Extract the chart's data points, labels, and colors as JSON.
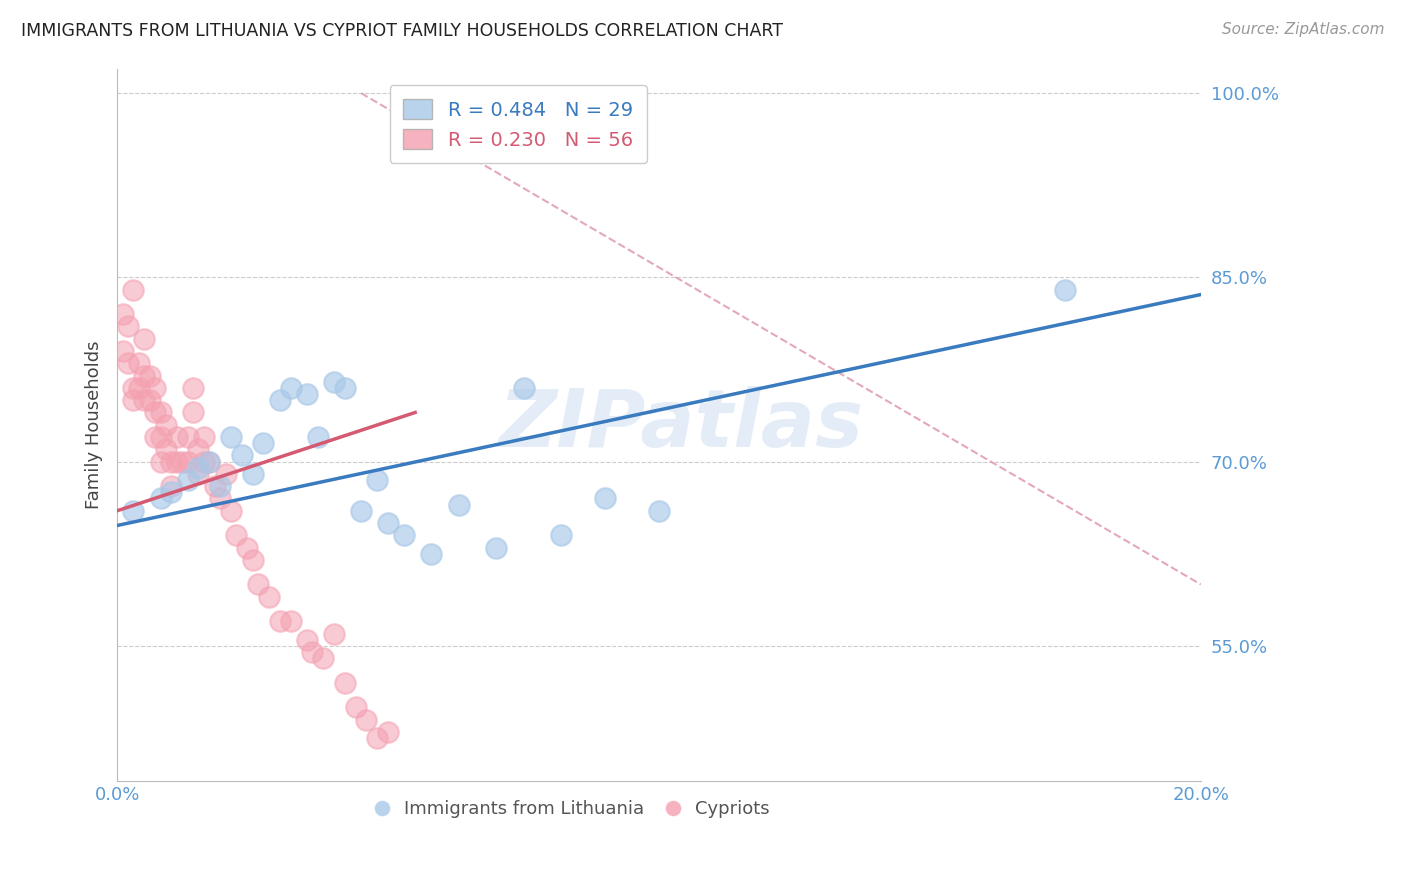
{
  "title": "IMMIGRANTS FROM LITHUANIA VS CYPRIOT FAMILY HOUSEHOLDS CORRELATION CHART",
  "source": "Source: ZipAtlas.com",
  "ylabel": "Family Households",
  "xlim": [
    0.0,
    0.2
  ],
  "ylim": [
    0.44,
    1.02
  ],
  "yticks": [
    0.55,
    0.7,
    0.85,
    1.0
  ],
  "ytick_labels": [
    "55.0%",
    "70.0%",
    "85.0%",
    "100.0%"
  ],
  "xticks": [
    0.0,
    0.04,
    0.08,
    0.12,
    0.16,
    0.2
  ],
  "xtick_labels": [
    "0.0%",
    "",
    "",
    "",
    "",
    "20.0%"
  ],
  "blue_color": "#a8c8e8",
  "pink_color": "#f4a0b0",
  "blue_line_color": "#3a7abf",
  "pink_line_color": "#d45a72",
  "dash_line_color": "#e0a0b0",
  "axis_color": "#5b9bd5",
  "blue_scatter_x": [
    0.003,
    0.008,
    0.01,
    0.013,
    0.015,
    0.017,
    0.019,
    0.021,
    0.023,
    0.025,
    0.027,
    0.03,
    0.032,
    0.035,
    0.037,
    0.04,
    0.042,
    0.045,
    0.048,
    0.05,
    0.053,
    0.058,
    0.063,
    0.07,
    0.075,
    0.082,
    0.09,
    0.1,
    0.175
  ],
  "blue_scatter_y": [
    0.66,
    0.67,
    0.675,
    0.685,
    0.695,
    0.7,
    0.68,
    0.72,
    0.705,
    0.69,
    0.715,
    0.75,
    0.76,
    0.755,
    0.72,
    0.765,
    0.76,
    0.66,
    0.685,
    0.65,
    0.64,
    0.625,
    0.665,
    0.63,
    0.76,
    0.64,
    0.67,
    0.66,
    0.84
  ],
  "pink_scatter_x": [
    0.001,
    0.001,
    0.002,
    0.002,
    0.003,
    0.003,
    0.003,
    0.004,
    0.004,
    0.005,
    0.005,
    0.005,
    0.006,
    0.006,
    0.007,
    0.007,
    0.007,
    0.008,
    0.008,
    0.008,
    0.009,
    0.009,
    0.01,
    0.01,
    0.011,
    0.011,
    0.012,
    0.013,
    0.013,
    0.014,
    0.014,
    0.015,
    0.015,
    0.016,
    0.016,
    0.017,
    0.018,
    0.019,
    0.02,
    0.021,
    0.022,
    0.024,
    0.025,
    0.026,
    0.028,
    0.03,
    0.032,
    0.035,
    0.036,
    0.038,
    0.04,
    0.042,
    0.044,
    0.046,
    0.048,
    0.05
  ],
  "pink_scatter_y": [
    0.82,
    0.79,
    0.81,
    0.78,
    0.84,
    0.76,
    0.75,
    0.78,
    0.76,
    0.8,
    0.77,
    0.75,
    0.77,
    0.75,
    0.76,
    0.74,
    0.72,
    0.74,
    0.72,
    0.7,
    0.73,
    0.71,
    0.7,
    0.68,
    0.72,
    0.7,
    0.7,
    0.72,
    0.7,
    0.76,
    0.74,
    0.71,
    0.69,
    0.72,
    0.7,
    0.7,
    0.68,
    0.67,
    0.69,
    0.66,
    0.64,
    0.63,
    0.62,
    0.6,
    0.59,
    0.57,
    0.57,
    0.555,
    0.545,
    0.54,
    0.56,
    0.52,
    0.5,
    0.49,
    0.475,
    0.48
  ],
  "blue_line_x0": 0.0,
  "blue_line_y0": 0.648,
  "blue_line_x1": 0.2,
  "blue_line_y1": 0.836,
  "pink_line_x0": 0.0,
  "pink_line_y0": 0.66,
  "pink_line_x1": 0.055,
  "pink_line_y1": 0.74,
  "dash_line_x0": 0.045,
  "dash_line_y0": 1.0,
  "dash_line_x1": 0.2,
  "dash_line_y1": 0.6
}
